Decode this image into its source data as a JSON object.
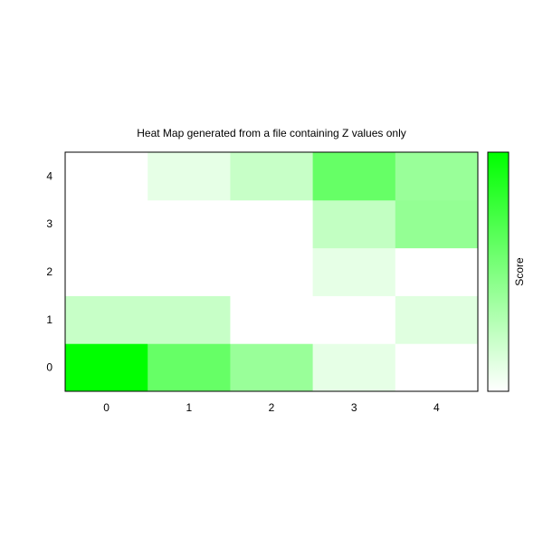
{
  "chart_data": {
    "type": "heatmap",
    "title": "Heat Map generated from a file containing Z values only",
    "x": [
      0,
      1,
      2,
      3,
      4
    ],
    "y": [
      0,
      1,
      2,
      3,
      4
    ],
    "x_tick_labels": [
      "0",
      "1",
      "2",
      "3",
      "4"
    ],
    "y_tick_labels": [
      "0",
      "1",
      "2",
      "3",
      "4"
    ],
    "z": [
      [
        5,
        3,
        2,
        0.5,
        0
      ],
      [
        1.1,
        1.1,
        0,
        0,
        0.6
      ],
      [
        0,
        0,
        0,
        0.5,
        0
      ],
      [
        0,
        0,
        0,
        1.2,
        2.1
      ],
      [
        0,
        0.5,
        1.1,
        3,
        2
      ]
    ],
    "z_range": [
      0,
      5
    ],
    "colorbar": {
      "label": "Score",
      "low_color": "#ffffff",
      "high_color": "#00ff00"
    },
    "grid": false,
    "legend": "colorbar-right"
  }
}
